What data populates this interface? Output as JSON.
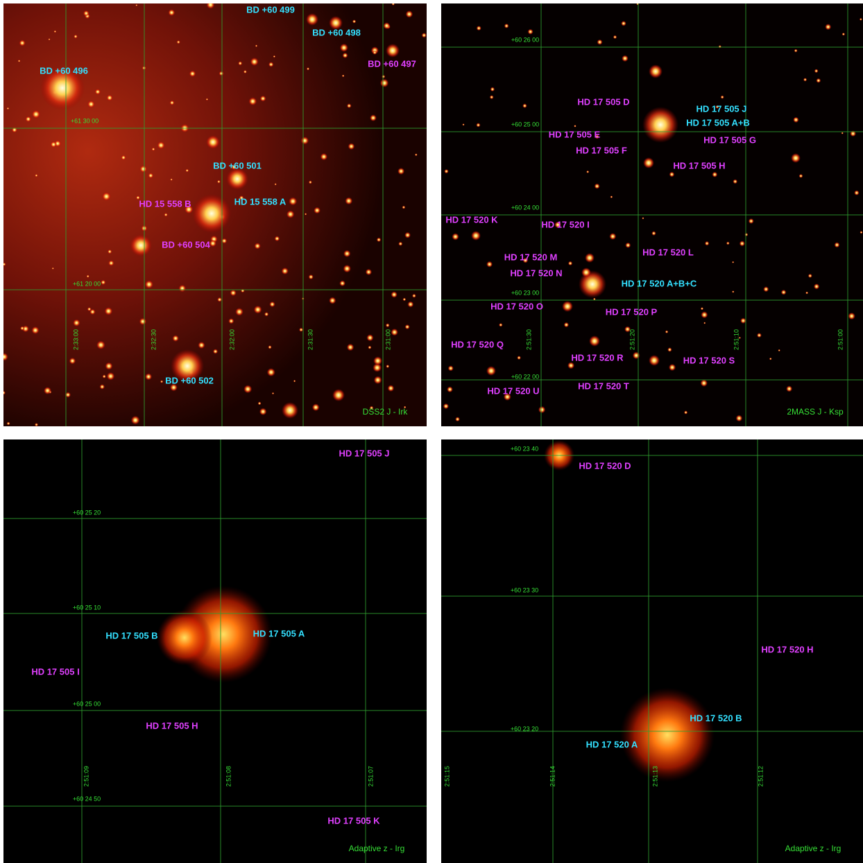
{
  "panels": [
    {
      "labels": [
        {
          "text": "BD +60 499",
          "color": "#33e0ff"
        },
        {
          "text": "BD +60 498",
          "color": "#33e0ff"
        },
        {
          "text": "BD +60 496",
          "color": "#33e0ff"
        },
        {
          "text": "BD +60 501",
          "color": "#33e0ff"
        },
        {
          "text": "HD 15 558 A",
          "color": "#33e0ff"
        },
        {
          "text": "BD +60 502",
          "color": "#33e0ff"
        },
        {
          "text": "BD +60 497",
          "color": "#e040ff"
        },
        {
          "text": "HD 15 558 B",
          "color": "#e040ff"
        },
        {
          "text": "BD +60 504",
          "color": "#e040ff"
        }
      ],
      "grid_labels": [
        "+61 30 00",
        "+61 20 00",
        "2:33:00",
        "2:32:30",
        "2:32:00",
        "2:31:30",
        "2:31:00"
      ],
      "caption": "DSS2 J - Irk"
    },
    {
      "labels": [
        {
          "text": "HD 17 505 J",
          "color": "#33e0ff"
        },
        {
          "text": "HD 17 505 A+B",
          "color": "#33e0ff"
        },
        {
          "text": "HD 17 520 A+B+C",
          "color": "#33e0ff"
        },
        {
          "text": "HD 17 505 D",
          "color": "#e040ff"
        },
        {
          "text": "HD 17 505 E",
          "color": "#e040ff"
        },
        {
          "text": "HD 17 505 F",
          "color": "#e040ff"
        },
        {
          "text": "HD 17 505 G",
          "color": "#e040ff"
        },
        {
          "text": "HD 17 505 H",
          "color": "#e040ff"
        },
        {
          "text": "HD 17 520 K",
          "color": "#e040ff"
        },
        {
          "text": "HD 17 520 I",
          "color": "#e040ff"
        },
        {
          "text": "HD 17 520 L",
          "color": "#e040ff"
        },
        {
          "text": "HD 17 520 M",
          "color": "#e040ff"
        },
        {
          "text": "HD 17 520 N",
          "color": "#e040ff"
        },
        {
          "text": "HD 17 520 O",
          "color": "#e040ff"
        },
        {
          "text": "HD 17 520 P",
          "color": "#e040ff"
        },
        {
          "text": "HD 17 520 Q",
          "color": "#e040ff"
        },
        {
          "text": "HD 17 520 R",
          "color": "#e040ff"
        },
        {
          "text": "HD 17 520 S",
          "color": "#e040ff"
        },
        {
          "text": "HD 17 520 T",
          "color": "#e040ff"
        },
        {
          "text": "HD 17 520 U",
          "color": "#e040ff"
        }
      ],
      "grid_labels": [
        "+60 26 00",
        "+60 25 00",
        "+60 24 00",
        "+60 23 00",
        "+60 22 00",
        "2:51:30",
        "2:51:20",
        "2:51:10",
        "2:51:00"
      ],
      "caption": "2MASS J - Ksp"
    },
    {
      "labels": [
        {
          "text": "HD 17 505 J",
          "color": "#e040ff"
        },
        {
          "text": "HD 17 505 B",
          "color": "#33e0ff"
        },
        {
          "text": "HD 17 505 A",
          "color": "#33e0ff"
        },
        {
          "text": "HD 17 505 I",
          "color": "#e040ff"
        },
        {
          "text": "HD 17 505 H",
          "color": "#e040ff"
        },
        {
          "text": "HD 17 505 K",
          "color": "#e040ff"
        }
      ],
      "grid_labels": [
        "+60 25 20",
        "+60 25 10",
        "+60 25 00",
        "+60 24 50",
        "2:51:09",
        "2:51:08",
        "2:51:07"
      ],
      "caption": "Adaptive z - Irg"
    },
    {
      "labels": [
        {
          "text": "HD 17 520 D",
          "color": "#e040ff"
        },
        {
          "text": "HD 17 520 H",
          "color": "#e040ff"
        },
        {
          "text": "HD 17 520 B",
          "color": "#33e0ff"
        },
        {
          "text": "HD 17 520 A",
          "color": "#33e0ff"
        }
      ],
      "grid_labels": [
        "+60 23 40",
        "+60 23 30",
        "+60 23 20",
        "2:51:15",
        "2:51:14",
        "2:51:13",
        "2:51:12"
      ],
      "caption": "Adaptive z - Irg"
    }
  ]
}
